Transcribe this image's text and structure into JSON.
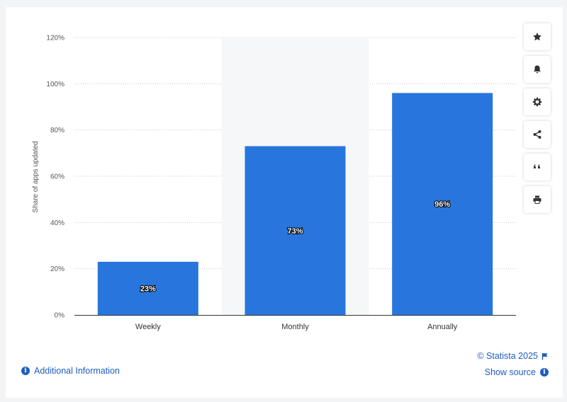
{
  "chart_data": {
    "type": "bar",
    "categories": [
      "Weekly",
      "Monthly",
      "Annually"
    ],
    "values": [
      23,
      73,
      96
    ],
    "value_labels": [
      "23%",
      "73%",
      "96%"
    ],
    "ylabel": "Share of apps updated",
    "ylim": [
      0,
      120
    ],
    "yticks": [
      "0%",
      "20%",
      "40%",
      "60%",
      "80%",
      "100%",
      "120%"
    ],
    "grid": true,
    "bar_color": "#2876dd",
    "highlight_category": "Monthly"
  },
  "toolbar": {
    "buttons": [
      {
        "icon": "star-icon"
      },
      {
        "icon": "bell-icon"
      },
      {
        "icon": "gear-icon"
      },
      {
        "icon": "share-icon"
      },
      {
        "icon": "quote-icon"
      },
      {
        "icon": "print-icon"
      }
    ]
  },
  "footer": {
    "additional_info": "Additional Information",
    "credit": "© Statista 2025",
    "show_source": "Show source"
  }
}
